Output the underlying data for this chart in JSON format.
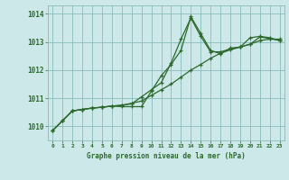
{
  "title": "Graphe pression niveau de la mer (hPa)",
  "bg_color": "#cce8e8",
  "grid_color": "#88bbbb",
  "line_color": "#2d6a2d",
  "xlim": [
    -0.5,
    23.5
  ],
  "ylim": [
    1009.5,
    1014.3
  ],
  "yticks": [
    1010,
    1011,
    1012,
    1013,
    1014
  ],
  "xticks": [
    0,
    1,
    2,
    3,
    4,
    5,
    6,
    7,
    8,
    9,
    10,
    11,
    12,
    13,
    14,
    15,
    16,
    17,
    18,
    19,
    20,
    21,
    22,
    23
  ],
  "series1_x": [
    0,
    1,
    2,
    3,
    4,
    5,
    6,
    7,
    8,
    9,
    10,
    11,
    12,
    13,
    14,
    15,
    16,
    17,
    18,
    19,
    20,
    21,
    22,
    23
  ],
  "series1_y": [
    1009.85,
    1010.2,
    1010.55,
    1010.6,
    1010.65,
    1010.68,
    1010.72,
    1010.75,
    1010.82,
    1010.9,
    1011.1,
    1011.3,
    1011.5,
    1011.75,
    1012.0,
    1012.2,
    1012.42,
    1012.6,
    1012.72,
    1012.82,
    1012.92,
    1013.05,
    1013.1,
    1013.1
  ],
  "series2_x": [
    0,
    1,
    2,
    3,
    4,
    5,
    6,
    7,
    8,
    9,
    10,
    11,
    12,
    13,
    14,
    15,
    16,
    17,
    18,
    19,
    20,
    21,
    22,
    23
  ],
  "series2_y": [
    1009.85,
    1010.2,
    1010.55,
    1010.6,
    1010.65,
    1010.68,
    1010.72,
    1010.75,
    1010.8,
    1011.05,
    1011.3,
    1011.55,
    1012.25,
    1013.1,
    1013.85,
    1013.2,
    1012.65,
    1012.65,
    1012.75,
    1012.82,
    1013.15,
    1013.2,
    1013.15,
    1013.05
  ],
  "series3_x": [
    0,
    1,
    2,
    3,
    4,
    5,
    6,
    7,
    8,
    9,
    10,
    11,
    12,
    13,
    14,
    15,
    16,
    17,
    18,
    19,
    20,
    21,
    22,
    23
  ],
  "series3_y": [
    1009.85,
    1010.2,
    1010.55,
    1010.6,
    1010.65,
    1010.68,
    1010.72,
    1010.7,
    1010.7,
    1010.7,
    1011.25,
    1011.8,
    1012.2,
    1012.7,
    1013.9,
    1013.3,
    1012.7,
    1012.58,
    1012.78,
    1012.82,
    1012.92,
    1013.18,
    1013.12,
    1013.05
  ]
}
